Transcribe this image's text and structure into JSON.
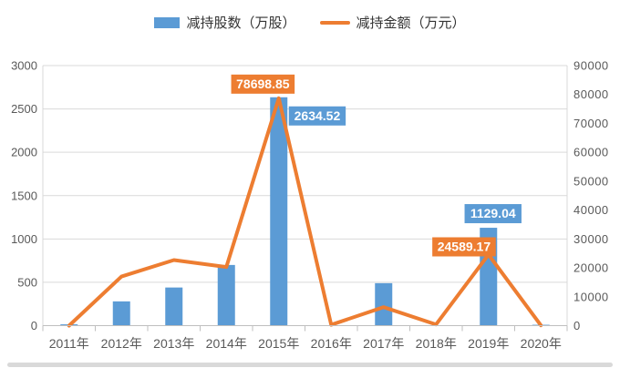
{
  "legend": {
    "items": [
      {
        "label": "减持股数（万股）",
        "type": "bar"
      },
      {
        "label": "减持金额（万元）",
        "type": "line"
      }
    ]
  },
  "chart_data": {
    "type": "bar+line",
    "title": "",
    "categories": [
      "2011年",
      "2012年",
      "2013年",
      "2014年",
      "2015年",
      "2016年",
      "2017年",
      "2018年",
      "2019年",
      "2020年"
    ],
    "series": [
      {
        "name": "减持股数（万股）",
        "type": "bar",
        "axis": "left",
        "values": [
          15,
          280,
          440,
          700,
          2634.52,
          0,
          490,
          0,
          1129.04,
          10
        ]
      },
      {
        "name": "减持金额（万元）",
        "type": "line",
        "axis": "right",
        "values": [
          0,
          17000,
          22700,
          20300,
          78698.85,
          300,
          6400,
          400,
          24589.17,
          100
        ]
      }
    ],
    "left_axis": {
      "min": 0,
      "max": 3000,
      "ticks": [
        "0",
        "500",
        "1000",
        "1500",
        "2000",
        "2500",
        "3000"
      ]
    },
    "right_axis": {
      "min": 0,
      "max": 90000,
      "ticks": [
        "0",
        "10000",
        "20000",
        "30000",
        "40000",
        "50000",
        "60000",
        "70000",
        "80000",
        "90000"
      ]
    },
    "data_labels": [
      {
        "series": 1,
        "index": 4,
        "text": "78698.85",
        "placement": "above-left"
      },
      {
        "series": 0,
        "index": 4,
        "text": "2634.52",
        "placement": "right-of-top"
      },
      {
        "series": 0,
        "index": 8,
        "text": "1129.04",
        "placement": "above"
      },
      {
        "series": 1,
        "index": 8,
        "text": "24589.17",
        "placement": "left"
      }
    ],
    "grid": true,
    "legend_position": "top"
  },
  "colors": {
    "bar": "#5B9BD5",
    "line": "#ED7D31",
    "grid": "#D9D9D9",
    "axis": "#BFBFBF",
    "tick_text": "#595959",
    "legend_text": "#333333",
    "label_text": "#FFFFFF",
    "scrollbar": "#D9D9D9",
    "background": "#FFFFFF"
  }
}
